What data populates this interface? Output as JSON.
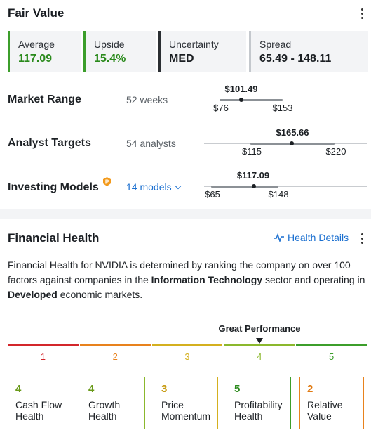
{
  "fair_value": {
    "title": "Fair Value",
    "stats": [
      {
        "label": "Average",
        "value": "117.09"
      },
      {
        "label": "Upside",
        "value": "15.4%"
      },
      {
        "label": "Uncertainty",
        "value": "MED"
      },
      {
        "label": "Spread",
        "value": "65.49 - 148.11"
      }
    ],
    "rows": [
      {
        "label": "Market Range",
        "sub": "52 weeks",
        "mid": "$101.49",
        "low": "$76",
        "high": "$153"
      },
      {
        "label": "Analyst Targets",
        "sub": "54 analysts",
        "mid": "$165.66",
        "low": "$115",
        "high": "$220"
      },
      {
        "label": "Investing Models",
        "sub": "14 models",
        "mid": "$117.09",
        "low": "$65",
        "high": "$148"
      }
    ]
  },
  "financial_health": {
    "title": "Financial Health",
    "details_link": "Health Details",
    "description": {
      "part1": "Financial Health for NVIDIA is determined by ranking the company on over 100 factors against companies in the ",
      "bold1": "Information Technology",
      "part2": " sector and operating in ",
      "bold2": "Developed",
      "part3": " economic markets."
    },
    "performance_label": "Great Performance",
    "performance_score": 4,
    "scale": [
      "1",
      "2",
      "3",
      "4",
      "5"
    ],
    "cards": [
      {
        "score": "4",
        "name": "Cash Flow Health"
      },
      {
        "score": "4",
        "name": "Growth Health"
      },
      {
        "score": "3",
        "name": "Price Momentum"
      },
      {
        "score": "5",
        "name": "Profitability Health"
      },
      {
        "score": "2",
        "name": "Relative Value"
      }
    ]
  },
  "colors": {
    "scale_1": "#d3262b",
    "scale_2": "#e8821d",
    "scale_3": "#d4b01f",
    "scale_4": "#8bb82d",
    "scale_5": "#3c9e2b",
    "positive_green": "#2a8a1c",
    "link_blue": "#1a6fd0"
  }
}
